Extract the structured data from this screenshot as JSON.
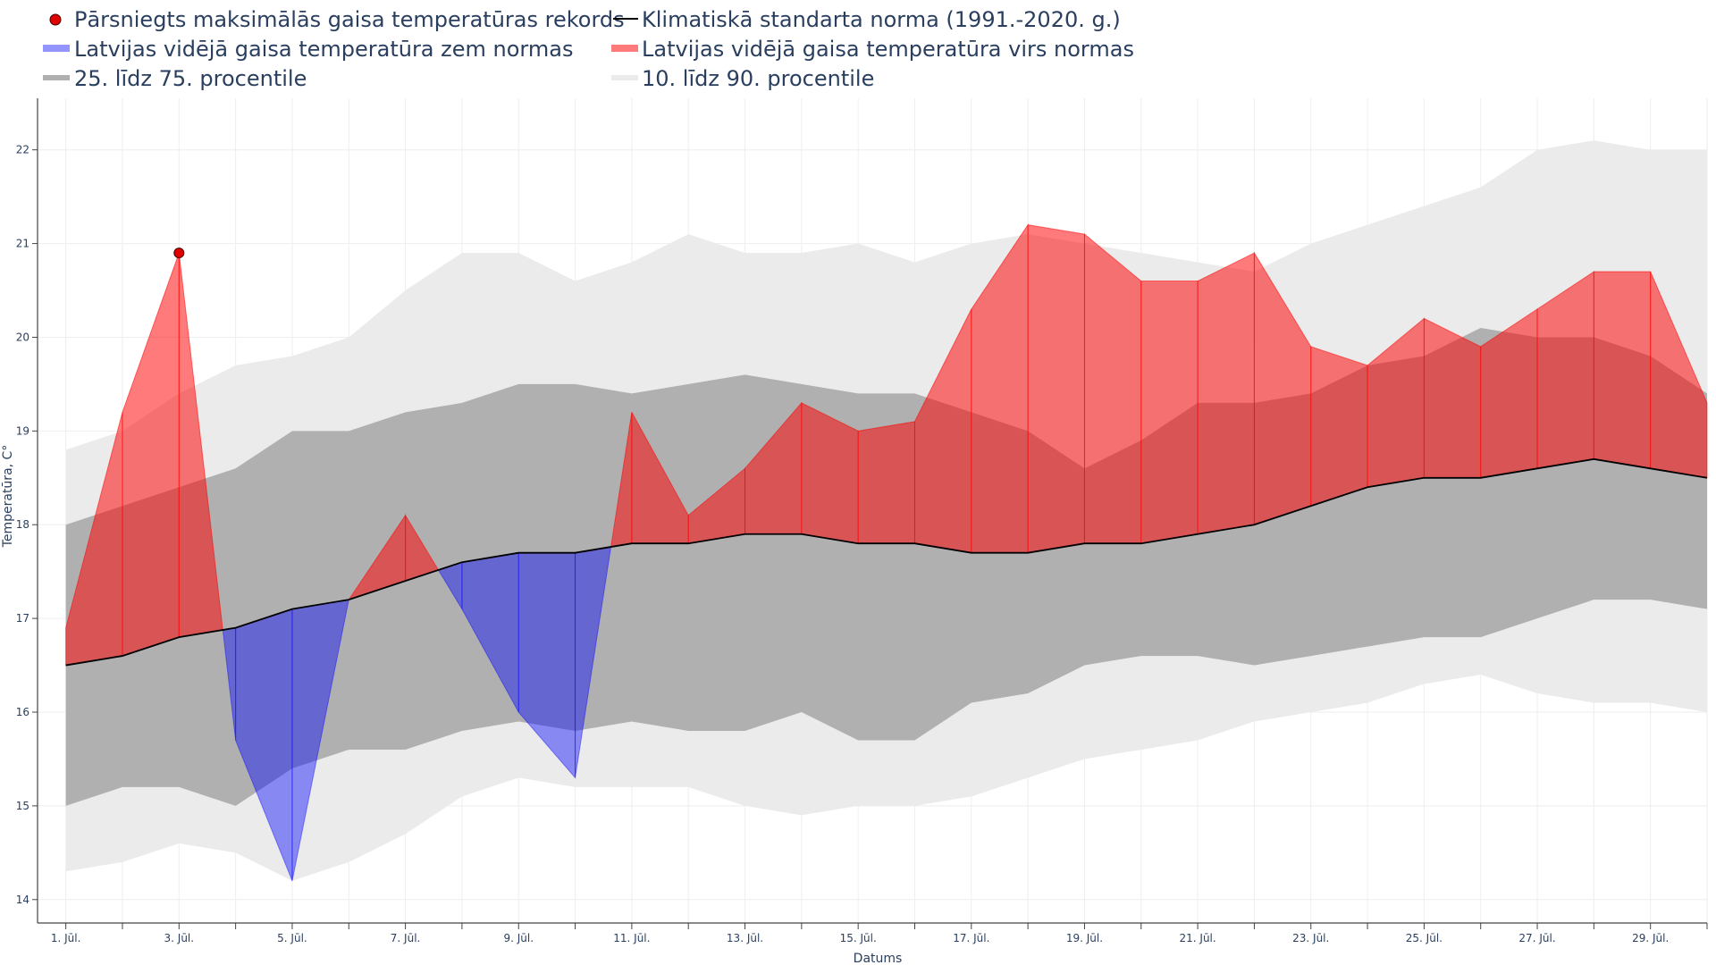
{
  "chart_data": {
    "type": "area",
    "xlabel": "Datums",
    "ylabel": "Temperatūra, C°",
    "ylim": [
      13.75,
      22.55
    ],
    "xlim": [
      0.5,
      30.0
    ],
    "yticks": [
      14,
      15,
      16,
      17,
      18,
      19,
      20,
      21,
      22
    ],
    "x_days": [
      1,
      2,
      3,
      4,
      5,
      6,
      7,
      8,
      9,
      10,
      11,
      12,
      13,
      14,
      15,
      16,
      17,
      18,
      19,
      20,
      21,
      22,
      23,
      24,
      25,
      26,
      27,
      28,
      29,
      30
    ],
    "x_tick_labels": [
      {
        "day": 1,
        "label": "1. Jūl."
      },
      {
        "day": 3,
        "label": "3. Jūl."
      },
      {
        "day": 5,
        "label": "5. Jūl."
      },
      {
        "day": 7,
        "label": "7. Jūl."
      },
      {
        "day": 9,
        "label": "9. Jūl."
      },
      {
        "day": 11,
        "label": "11. Jūl."
      },
      {
        "day": 13,
        "label": "13. Jūl."
      },
      {
        "day": 15,
        "label": "15. Jūl."
      },
      {
        "day": 17,
        "label": "17. Jūl."
      },
      {
        "day": 19,
        "label": "19. Jūl."
      },
      {
        "day": 21,
        "label": "21. Jūl."
      },
      {
        "day": 23,
        "label": "23. Jūl."
      },
      {
        "day": 25,
        "label": "25. Jūl."
      },
      {
        "day": 27,
        "label": "27. Jūl."
      },
      {
        "day": 29,
        "label": "29. Jūl."
      }
    ],
    "grid": true,
    "legend_position": "top",
    "legend": [
      {
        "key": "record",
        "label": "Pārsniegts maksimālās gaisa temperatūras rekords"
      },
      {
        "key": "norm",
        "label": "Klimatiskā standarta norma (1991.-2020. g.)"
      },
      {
        "key": "below",
        "label": "Latvijas vidējā gaisa temperatūra zem normas"
      },
      {
        "key": "above",
        "label": "Latvijas vidējā gaisa temperatūra virs normas"
      },
      {
        "key": "p25_75",
        "label": "25. līdz 75. procentile"
      },
      {
        "key": "p10_90",
        "label": "10. līdz 90. procentile"
      }
    ],
    "series": [
      {
        "key": "p10",
        "values": [
          14.3,
          14.4,
          14.6,
          14.5,
          14.2,
          14.4,
          14.7,
          15.1,
          15.3,
          15.2,
          15.2,
          15.2,
          15.0,
          14.9,
          15.0,
          15.0,
          15.1,
          15.3,
          15.5,
          15.6,
          15.7,
          15.9,
          16.0,
          16.1,
          16.3,
          16.4,
          16.2,
          16.1,
          16.1,
          16.0
        ]
      },
      {
        "key": "p90",
        "values": [
          18.8,
          19.0,
          19.4,
          19.7,
          19.8,
          20.0,
          20.5,
          20.9,
          20.9,
          20.6,
          20.8,
          21.1,
          20.9,
          20.9,
          21.0,
          20.8,
          21.0,
          21.1,
          21.0,
          20.9,
          20.8,
          20.7,
          21.0,
          21.2,
          21.4,
          21.6,
          22.0,
          22.1,
          22.0,
          22.0
        ]
      },
      {
        "key": "p25",
        "values": [
          15.0,
          15.2,
          15.2,
          15.0,
          15.4,
          15.6,
          15.6,
          15.8,
          15.9,
          15.8,
          15.9,
          15.8,
          15.8,
          16.0,
          15.7,
          15.7,
          16.1,
          16.2,
          16.5,
          16.6,
          16.6,
          16.5,
          16.6,
          16.7,
          16.8,
          16.8,
          17.0,
          17.2,
          17.2,
          17.1
        ]
      },
      {
        "key": "p75",
        "values": [
          18.0,
          18.2,
          18.4,
          18.6,
          19.0,
          19.0,
          19.2,
          19.3,
          19.5,
          19.5,
          19.4,
          19.5,
          19.6,
          19.5,
          19.4,
          19.4,
          19.2,
          19.0,
          18.6,
          18.9,
          19.3,
          19.3,
          19.4,
          19.7,
          19.8,
          20.1,
          20.0,
          20.0,
          19.8,
          19.4
        ]
      },
      {
        "key": "norm",
        "values": [
          16.5,
          16.6,
          16.8,
          16.9,
          17.1,
          17.2,
          17.4,
          17.6,
          17.7,
          17.7,
          17.8,
          17.8,
          17.9,
          17.9,
          17.8,
          17.8,
          17.7,
          17.7,
          17.8,
          17.8,
          17.9,
          18.0,
          18.2,
          18.4,
          18.5,
          18.5,
          18.6,
          18.7,
          18.6,
          18.5
        ]
      },
      {
        "key": "actual",
        "values": [
          16.9,
          19.2,
          20.9,
          15.7,
          14.2,
          17.2,
          18.1,
          17.1,
          16.0,
          15.3,
          19.2,
          18.1,
          18.6,
          19.3,
          19.0,
          19.1,
          20.3,
          21.2,
          21.1,
          20.6,
          20.6,
          20.9,
          19.9,
          19.7,
          20.2,
          19.9,
          20.3,
          20.7,
          20.7,
          19.3
        ]
      }
    ],
    "record_points": [
      {
        "day": 3,
        "value": 20.9
      }
    ],
    "colors": {
      "above": "#ff0000",
      "below": "#0000ff",
      "norm": "#000000",
      "p25_75": "#b0b0b0",
      "p10_90": "#ebebeb",
      "record_fill": "#e00000",
      "record_stroke": "#400000",
      "axis": "#444444",
      "grid": "#eeeeee",
      "text": "#2a3f5f"
    }
  }
}
